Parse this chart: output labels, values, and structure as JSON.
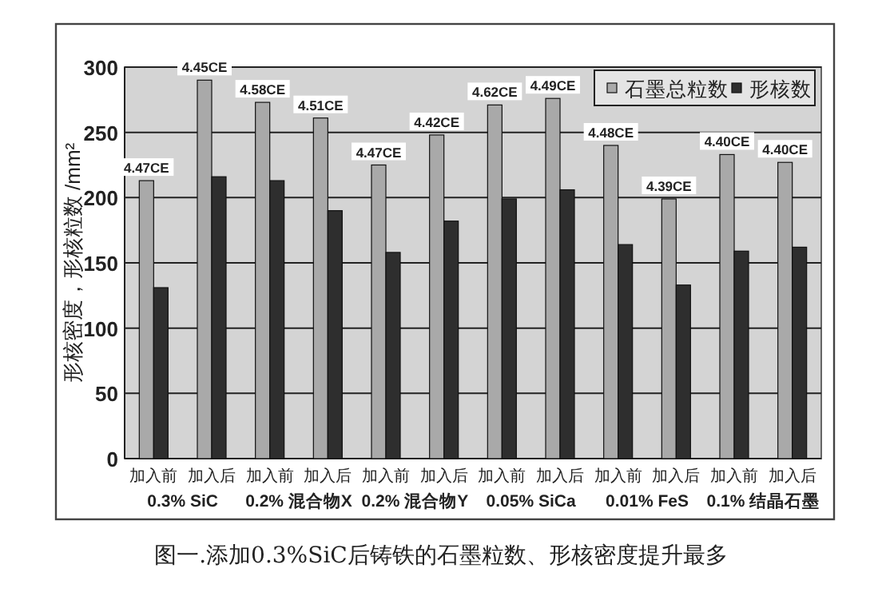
{
  "chart_data": {
    "type": "bar",
    "categories": [
      "加入前",
      "加入后",
      "加入前",
      "加入后",
      "加入前",
      "加入后",
      "加入前",
      "加入后",
      "加入前",
      "加入后",
      "加入前",
      "加入后"
    ],
    "series": [
      {
        "name": "石墨总粒数",
        "color": "#a9a9a9",
        "values": [
          213,
          290,
          273,
          261,
          225,
          248,
          271,
          276,
          240,
          199,
          233,
          227
        ]
      },
      {
        "name": "形核数",
        "color": "#2e2e2e",
        "values": [
          131,
          216,
          213,
          190,
          158,
          182,
          199,
          206,
          164,
          133,
          159,
          162
        ]
      }
    ],
    "ylabel": "形核密度，形核粒数 /mm²",
    "ylim": [
      0,
      300
    ],
    "yticks": [
      0,
      50,
      100,
      150,
      200,
      250,
      300
    ],
    "grid": "y",
    "legend": "top right",
    "marker": "square",
    "annotations": [
      "4.47CE",
      "4.45CE",
      "4.58CE",
      "4.51CE",
      "4.47CE",
      "4.42CE",
      "4.62CE",
      "4.49CE",
      "4.48CE",
      "4.39CE",
      "4.40CE",
      "4.40CE",
      "0.3% SiC",
      "0.2% 混合物X",
      "0.2% 混合物Y",
      "0.05% SiCa",
      "0.01% FeS",
      "0.1% 结晶石墨",
      "图一.添加0.3%SiC后铸铁的石墨粒数、形核密度提升最多"
    ]
  }
}
